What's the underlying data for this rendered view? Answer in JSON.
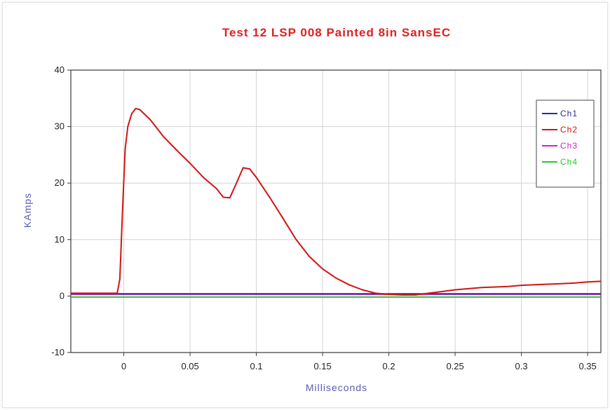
{
  "chart_data": {
    "type": "line",
    "title": "Test 12 LSP 008 Painted 8in SansEC",
    "xlabel": "Milliseconds",
    "ylabel": "KAmps",
    "xlim": [
      -0.04,
      0.36
    ],
    "ylim": [
      -10,
      40
    ],
    "x_ticks": [
      0,
      0.05,
      0.1,
      0.15,
      0.2,
      0.25,
      0.3,
      0.35
    ],
    "x_tick_labels": [
      "0",
      "0.05",
      "0.1",
      "0.15",
      "0.2",
      "0.25",
      "0.3",
      "0.35"
    ],
    "y_ticks": [
      -10,
      0,
      10,
      20,
      30,
      40
    ],
    "y_tick_labels": [
      "-10",
      "0",
      "10",
      "20",
      "30",
      "40"
    ],
    "grid": true,
    "legend_position": "top-right",
    "series": [
      {
        "name": "Ch1",
        "color": "#2a2a9a",
        "x": [
          -0.04,
          0.36
        ],
        "y": [
          0.4,
          0.4
        ]
      },
      {
        "name": "Ch2",
        "color": "#d21414",
        "x": [
          -0.04,
          -0.005,
          -0.003,
          -0.001,
          0.001,
          0.003,
          0.006,
          0.009,
          0.012,
          0.02,
          0.03,
          0.04,
          0.05,
          0.06,
          0.07,
          0.075,
          0.08,
          0.085,
          0.09,
          0.095,
          0.1,
          0.11,
          0.12,
          0.13,
          0.14,
          0.15,
          0.16,
          0.17,
          0.18,
          0.19,
          0.2,
          0.21,
          0.22,
          0.23,
          0.24,
          0.25,
          0.26,
          0.27,
          0.28,
          0.29,
          0.3,
          0.31,
          0.32,
          0.33,
          0.34,
          0.35,
          0.36
        ],
        "y": [
          0.5,
          0.5,
          3,
          15,
          26,
          30,
          32.3,
          33.2,
          33.0,
          31.2,
          28.2,
          25.8,
          23.5,
          21.0,
          19.0,
          17.5,
          17.4,
          20.0,
          22.7,
          22.5,
          21.0,
          17.5,
          13.8,
          10.0,
          7.0,
          4.8,
          3.2,
          2.0,
          1.1,
          0.5,
          0.3,
          0.2,
          0.2,
          0.5,
          0.8,
          1.1,
          1.3,
          1.5,
          1.6,
          1.7,
          1.9,
          2.0,
          2.1,
          2.2,
          2.3,
          2.5,
          2.6
        ]
      },
      {
        "name": "Ch3",
        "color": "#cc22cc",
        "x": [
          -0.04,
          0.36
        ],
        "y": [
          0.3,
          0.3
        ]
      },
      {
        "name": "Ch4",
        "color": "#22cc22",
        "x": [
          -0.04,
          0.36
        ],
        "y": [
          -0.2,
          -0.2
        ]
      }
    ]
  }
}
